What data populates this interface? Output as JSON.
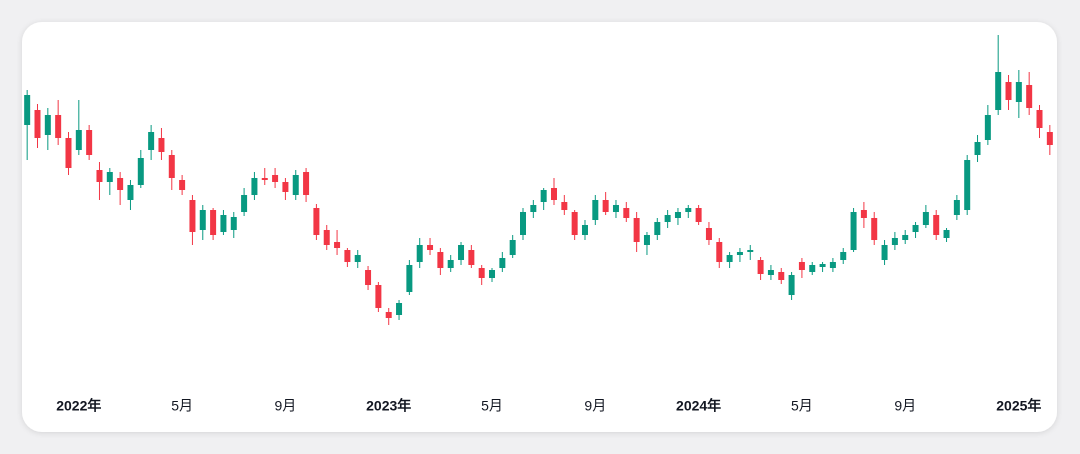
{
  "chart_data": {
    "type": "candlestick",
    "categories": [
      null,
      null,
      null,
      null,
      null,
      "2022年",
      null,
      null,
      null,
      null,
      null,
      null,
      null,
      null,
      null,
      "5月",
      null,
      null,
      null,
      null,
      null,
      null,
      null,
      null,
      null,
      "9月",
      null,
      null,
      null,
      null,
      null,
      null,
      null,
      null,
      null,
      "2023年",
      null,
      null,
      null,
      null,
      null,
      null,
      null,
      null,
      null,
      "5月",
      null,
      null,
      null,
      null,
      null,
      null,
      null,
      null,
      null,
      "9月",
      null,
      null,
      null,
      null,
      null,
      null,
      null,
      null,
      null,
      "2024年",
      null,
      null,
      null,
      null,
      null,
      null,
      null,
      null,
      null,
      "5月",
      null,
      null,
      null,
      null,
      null,
      null,
      null,
      null,
      null,
      "9月",
      null,
      null,
      null,
      null,
      null,
      null,
      null,
      null,
      null,
      null,
      "2025年",
      null,
      null,
      null
    ],
    "open": [
      275,
      290,
      265,
      285,
      262,
      250,
      270,
      230,
      218,
      222,
      200,
      215,
      250,
      262,
      245,
      220,
      200,
      170,
      190,
      168,
      170,
      188,
      205,
      222,
      225,
      218,
      205,
      228,
      192,
      170,
      158,
      150,
      138,
      130,
      115,
      88,
      85,
      108,
      138,
      155,
      148,
      132,
      140,
      150,
      132,
      122,
      132,
      145,
      165,
      188,
      198,
      212,
      198,
      188,
      165,
      180,
      200,
      188,
      192,
      182,
      155,
      165,
      178,
      182,
      188,
      192,
      172,
      158,
      138,
      145,
      148,
      140,
      125,
      128,
      105,
      138,
      128,
      133,
      132,
      140,
      150,
      190,
      182,
      140,
      155,
      160,
      168,
      175,
      185,
      162,
      185,
      190,
      245,
      260,
      290,
      318,
      298,
      315,
      290,
      268
    ],
    "high": [
      310,
      296,
      292,
      300,
      268,
      300,
      275,
      238,
      232,
      228,
      220,
      250,
      275,
      272,
      250,
      225,
      205,
      195,
      192,
      190,
      188,
      212,
      228,
      232,
      232,
      222,
      230,
      232,
      196,
      175,
      170,
      152,
      150,
      134,
      118,
      92,
      100,
      140,
      162,
      162,
      152,
      145,
      158,
      155,
      135,
      132,
      148,
      165,
      192,
      200,
      212,
      222,
      205,
      190,
      180,
      205,
      208,
      200,
      198,
      188,
      168,
      182,
      190,
      192,
      195,
      195,
      178,
      162,
      148,
      152,
      155,
      143,
      135,
      132,
      128,
      142,
      138,
      138,
      142,
      152,
      192,
      198,
      188,
      160,
      168,
      170,
      178,
      195,
      190,
      172,
      205,
      245,
      265,
      295,
      365,
      325,
      330,
      328,
      295,
      275
    ],
    "low": [
      240,
      252,
      250,
      255,
      225,
      245,
      240,
      200,
      205,
      195,
      190,
      212,
      240,
      240,
      210,
      205,
      155,
      160,
      160,
      165,
      162,
      184,
      200,
      215,
      212,
      200,
      200,
      198,
      160,
      150,
      145,
      133,
      132,
      110,
      88,
      75,
      80,
      105,
      132,
      145,
      125,
      128,
      135,
      132,
      115,
      118,
      128,
      142,
      160,
      182,
      190,
      195,
      185,
      160,
      160,
      175,
      185,
      182,
      178,
      148,
      145,
      160,
      172,
      175,
      182,
      175,
      155,
      132,
      132,
      138,
      140,
      120,
      120,
      116,
      100,
      122,
      125,
      128,
      128,
      136,
      148,
      172,
      155,
      135,
      150,
      156,
      162,
      172,
      160,
      158,
      180,
      185,
      238,
      255,
      285,
      290,
      282,
      285,
      262,
      245
    ],
    "close": [
      305,
      262,
      285,
      262,
      232,
      270,
      245,
      218,
      228,
      210,
      215,
      242,
      268,
      248,
      222,
      210,
      168,
      190,
      165,
      185,
      183,
      205,
      222,
      220,
      218,
      208,
      225,
      205,
      165,
      155,
      152,
      138,
      145,
      115,
      92,
      82,
      97,
      135,
      155,
      150,
      132,
      140,
      155,
      135,
      122,
      130,
      142,
      160,
      188,
      195,
      210,
      200,
      190,
      165,
      175,
      200,
      188,
      195,
      182,
      158,
      165,
      178,
      185,
      188,
      192,
      178,
      160,
      138,
      145,
      148,
      150,
      126,
      130,
      120,
      125,
      130,
      135,
      136,
      138,
      148,
      188,
      182,
      160,
      155,
      162,
      165,
      175,
      188,
      165,
      170,
      200,
      240,
      258,
      285,
      328,
      300,
      318,
      292,
      272,
      255
    ],
    "up_color": "#089981",
    "down_color": "#f23645",
    "ylim": [
      0,
      400
    ]
  }
}
